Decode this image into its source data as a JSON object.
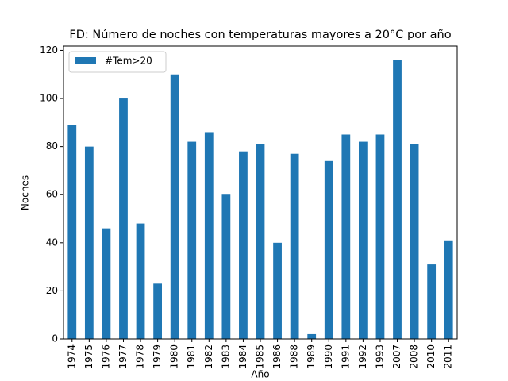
{
  "chart_data": {
    "type": "bar",
    "title": "FD: Número de noches con temperaturas mayores a 20°C por año",
    "x_label": "Año",
    "y_label": "Noches",
    "categories": [
      "1974",
      "1975",
      "1976",
      "1977",
      "1978",
      "1979",
      "1980",
      "1981",
      "1982",
      "1983",
      "1984",
      "1985",
      "1986",
      "1988",
      "1989",
      "1990",
      "1991",
      "1992",
      "1993",
      "2007",
      "2008",
      "2010",
      "2011"
    ],
    "series": [
      {
        "name": "#Tem>20",
        "color": "#1f77b4",
        "values": [
          89,
          80,
          46,
          100,
          48,
          23,
          110,
          82,
          86,
          60,
          78,
          81,
          40,
          77,
          2,
          74,
          85,
          82,
          85,
          116,
          81,
          31,
          41
        ]
      }
    ],
    "ylim": [
      0,
      121.8
    ],
    "yticks": [
      0,
      20,
      40,
      60,
      80,
      100,
      120
    ],
    "legend": "upper left"
  }
}
